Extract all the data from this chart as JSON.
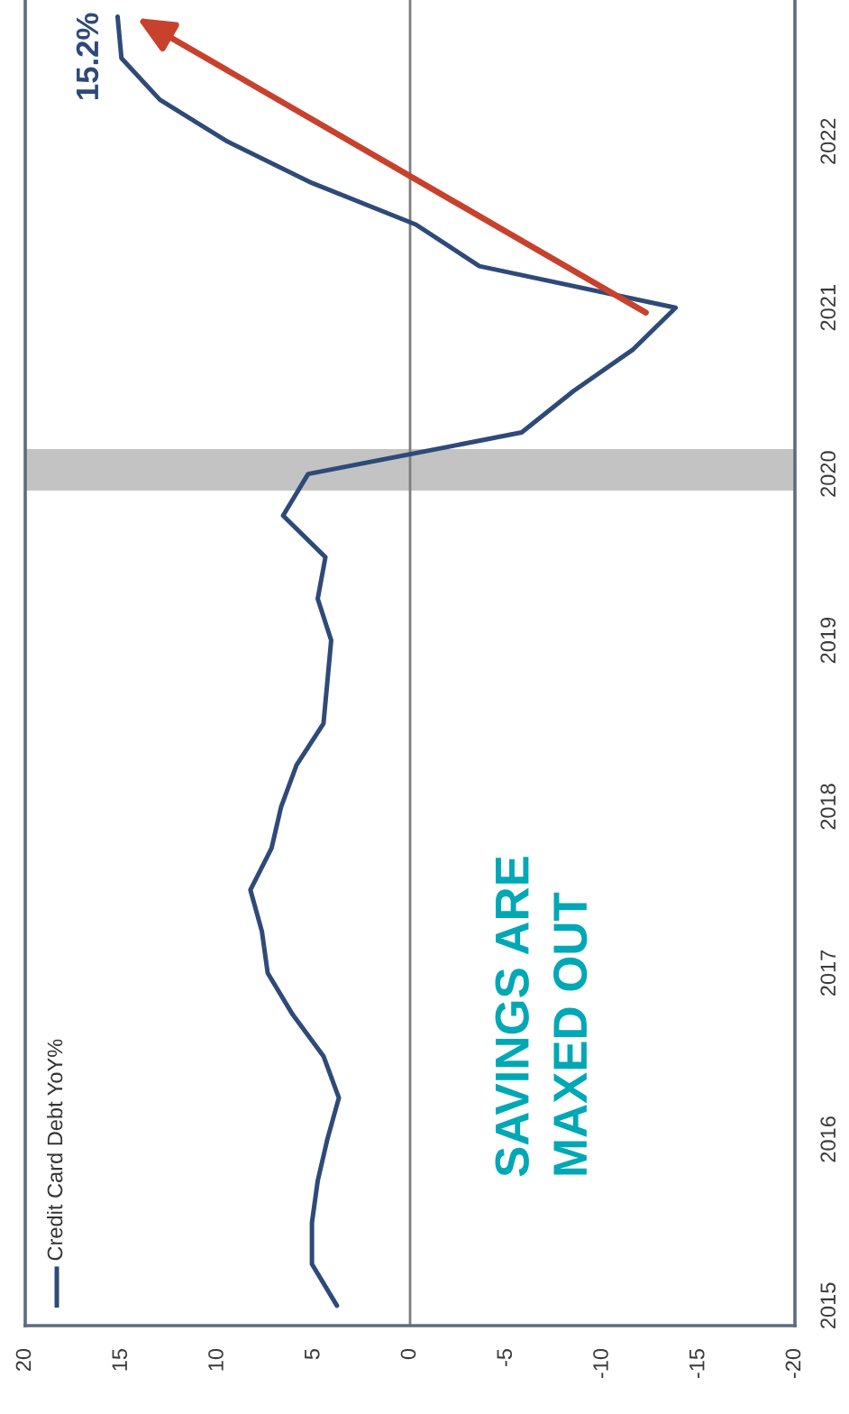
{
  "chart_data": {
    "type": "line",
    "orientation": "horizontal",
    "x": [
      2015.0,
      2015.25,
      2015.5,
      2015.75,
      2016.0,
      2016.25,
      2016.5,
      2016.75,
      2017.0,
      2017.25,
      2017.5,
      2017.75,
      2018.0,
      2018.25,
      2018.5,
      2018.75,
      2019.0,
      2019.25,
      2019.5,
      2019.75,
      2020.0,
      2020.25,
      2020.5,
      2020.75,
      2021.0,
      2021.25,
      2021.5,
      2021.75,
      2022.0,
      2022.25,
      2022.5,
      2022.75
    ],
    "series": [
      {
        "name": "Credit Card Debt YoY%",
        "color": "#2e4a78",
        "values": [
          3.8,
          5.1,
          5.1,
          4.8,
          4.3,
          3.7,
          4.5,
          6.1,
          7.4,
          7.7,
          8.3,
          7.2,
          6.7,
          5.9,
          4.5,
          4.3,
          4.1,
          4.8,
          4.4,
          6.6,
          5.3,
          -5.8,
          -8.5,
          -11.6,
          -13.8,
          -3.6,
          -0.3,
          5.1,
          9.5,
          13.0,
          15.0,
          15.2
        ],
        "value_labels": [
          null,
          null,
          null,
          null,
          null,
          null,
          null,
          null,
          null,
          null,
          null,
          null,
          null,
          null,
          null,
          null,
          null,
          null,
          null,
          null,
          null,
          null,
          null,
          null,
          null,
          null,
          null,
          null,
          null,
          null,
          null,
          "15.2%"
        ]
      }
    ],
    "xlim": [
      20,
      -20
    ],
    "xticks": [
      20,
      15,
      10,
      5,
      0,
      -5,
      -10,
      -15,
      -20
    ],
    "ylim": [
      2014.88,
      2022.85
    ],
    "yticks": [
      2015,
      2016,
      2017,
      2018,
      2019,
      2020,
      2021,
      2022
    ],
    "ref_lines": [
      {
        "axis": "x",
        "value": 0,
        "color": "#7f7f7f"
      }
    ],
    "bands": [
      {
        "axis": "y",
        "from": 2019.9,
        "to": 2020.15,
        "color": "#c3c3c3"
      }
    ],
    "annotations": [
      "SAVINGS ARE\nMAXED OUT"
    ],
    "legend": "bottom left"
  }
}
